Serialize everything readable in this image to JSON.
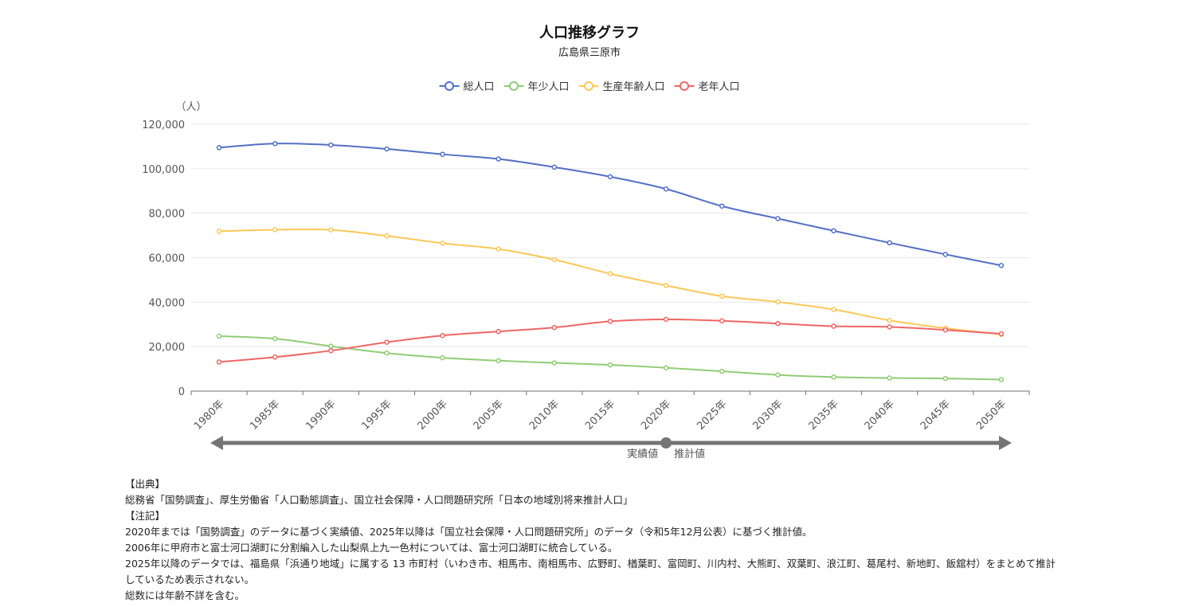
{
  "colors": {
    "total": "#5470c6",
    "young": "#91cc75",
    "working": "#fac858",
    "elderly": "#ee6666",
    "grid": "#e6e6e6",
    "axis": "#6e7079",
    "arrow": "#757575"
  },
  "chart_data": {
    "type": "line",
    "title": "人口推移グラフ",
    "subtitle": "広島県三原市",
    "y_unit": "（人）",
    "ylim": [
      0,
      120000
    ],
    "y_ticks": [
      "0",
      "20,000",
      "40,000",
      "60,000",
      "80,000",
      "100,000",
      "120,000"
    ],
    "y_tick_values": [
      0,
      20000,
      40000,
      60000,
      80000,
      100000,
      120000
    ],
    "categories": [
      "1980年",
      "1985年",
      "1990年",
      "1995年",
      "2000年",
      "2005年",
      "2010年",
      "2015年",
      "2020年",
      "2025年",
      "2030年",
      "2035年",
      "2040年",
      "2045年",
      "2050年"
    ],
    "legend_position": "top-center",
    "grid": true,
    "series": [
      {
        "key": "total",
        "name": "総人口",
        "values": [
          109500,
          111300,
          110700,
          108900,
          106500,
          104400,
          100700,
          96400,
          90900,
          83200,
          77600,
          72100,
          66700,
          61500,
          56500
        ]
      },
      {
        "key": "young",
        "name": "年少人口",
        "values": [
          24700,
          23600,
          20200,
          17100,
          15000,
          13700,
          12700,
          11800,
          10500,
          8900,
          7300,
          6300,
          5900,
          5700,
          5200
        ]
      },
      {
        "key": "working",
        "name": "生産年齢人口",
        "values": [
          71900,
          72600,
          72500,
          69800,
          66500,
          63900,
          59100,
          52800,
          47500,
          42700,
          40100,
          36700,
          31800,
          28300,
          25500
        ]
      },
      {
        "key": "elderly",
        "name": "老年人口",
        "values": [
          13100,
          15300,
          18200,
          22000,
          25000,
          26800,
          28600,
          31400,
          32300,
          31600,
          30400,
          29200,
          28900,
          27500,
          25800
        ]
      }
    ],
    "annotation": {
      "actual_label": "実績値",
      "projected_label": "推計値",
      "boundary_category": "2020年"
    }
  },
  "notes": {
    "source_heading": "【出典】",
    "source_text": "総務省「国勢調査」、厚生労働省「人口動態調査」、国立社会保障・人口問題研究所「日本の地域別将来推計人口」",
    "notes_heading": "【注記】",
    "lines": [
      "2020年までは「国勢調査」のデータに基づく実績値、2025年以降は「国立社会保障・人口問題研究所」のデータ（令和5年12月公表）に基づく推計値。",
      "2006年に甲府市と富士河口湖町に分割編入した山梨県上九一色村については、富士河口湖町に統合している。",
      "2025年以降のデータでは、福島県「浜通り地域」に属する 13 市町村（いわき市、相馬市、南相馬市、広野町、楢葉町、富岡町、川内村、大熊町、双葉町、浪江町、葛尾村、新地町、飯舘村）をまとめて推計しているため表示されない。",
      "総数には年齢不詳を含む。"
    ]
  }
}
